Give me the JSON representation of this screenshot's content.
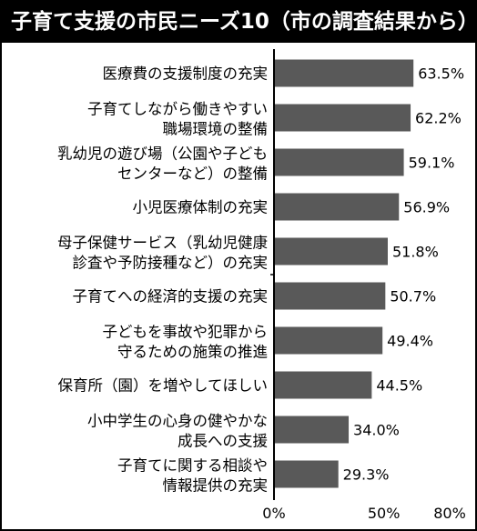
{
  "chart_data": {
    "type": "bar",
    "orientation": "horizontal",
    "title": "子育て支援の市民ニーズ10（市の調査結果から）",
    "categories": [
      [
        "医療費の支援制度の充実"
      ],
      [
        "子育てしながら働きやすい",
        "職場環境の整備"
      ],
      [
        "乳幼児の遊び場（公園や子ども",
        "センターなど）の整備"
      ],
      [
        "小児医療体制の充実"
      ],
      [
        "母子保健サービス（乳幼児健康",
        "診査や予防接種など）の充実"
      ],
      [
        "子育てへの経済的支援の充実"
      ],
      [
        "子どもを事故や犯罪から",
        "守るための施策の推進"
      ],
      [
        "保育所（園）を増やしてほしい"
      ],
      [
        "小中学生の心身の健やかな",
        "成長への支援"
      ],
      [
        "子育てに関する相談や",
        "情報提供の充実"
      ]
    ],
    "values": [
      63.5,
      62.2,
      59.1,
      56.9,
      51.8,
      50.7,
      49.4,
      44.5,
      34.0,
      29.3
    ],
    "value_labels": [
      "63.5%",
      "62.2%",
      "59.1%",
      "56.9%",
      "51.8%",
      "50.7%",
      "49.4%",
      "44.5%",
      "34.0%",
      "29.3%"
    ],
    "xlim": [
      0,
      80
    ],
    "xticks": [
      "0%",
      "50%",
      "80%"
    ],
    "xtick_values": [
      0,
      50,
      80
    ],
    "bar_color": "#595959",
    "grid": false
  }
}
